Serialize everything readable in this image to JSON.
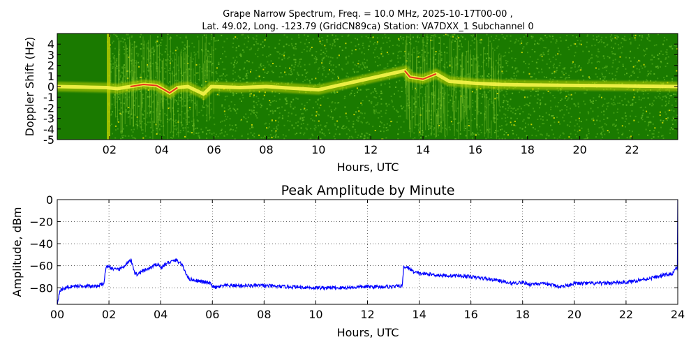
{
  "chart_data": [
    {
      "type": "heatmap",
      "title_line1": "Grape Narrow Spectrum, Freq. = 10.0 MHz, 2025-10-17T00-00 ,",
      "title_line2": "Lat.  49.02, Long. -123.79 (GridCN89ca) Station: VA7DXX_1 Subchannel 0",
      "xlabel": "Hours, UTC",
      "ylabel": "Doppler Shift (Hz)",
      "xlim": [
        0,
        23.75
      ],
      "ylim": [
        -5,
        5
      ],
      "x_ticks": [
        2,
        4,
        6,
        8,
        10,
        12,
        14,
        16,
        18,
        20,
        22
      ],
      "x_tick_labels": [
        "02",
        "04",
        "06",
        "08",
        "10",
        "12",
        "14",
        "16",
        "18",
        "20",
        "22"
      ],
      "y_ticks": [
        -5,
        -4,
        -3,
        -2,
        -1,
        0,
        1,
        2,
        3,
        4
      ],
      "y_tick_labels": [
        "-5",
        "-4",
        "-3",
        "-2",
        "-1",
        "0",
        "1",
        "2",
        "3",
        "4"
      ],
      "colors": {
        "background": "#1a7a00",
        "noise": "#3f9a12",
        "mid": "#c8d400",
        "high": "#f7f54a",
        "peak": "#e8341c"
      },
      "carrier_trace": [
        {
          "x": 0.0,
          "y": 0.0
        },
        {
          "x": 1.0,
          "y": -0.05
        },
        {
          "x": 1.9,
          "y": -0.1
        },
        {
          "x": 2.3,
          "y": -0.2
        },
        {
          "x": 2.8,
          "y": 0.0
        },
        {
          "x": 3.3,
          "y": 0.2
        },
        {
          "x": 3.8,
          "y": 0.1
        },
        {
          "x": 4.1,
          "y": -0.3
        },
        {
          "x": 4.3,
          "y": -0.6
        },
        {
          "x": 4.6,
          "y": -0.1
        },
        {
          "x": 5.0,
          "y": 0.0
        },
        {
          "x": 5.6,
          "y": -0.7
        },
        {
          "x": 5.9,
          "y": 0.0
        },
        {
          "x": 7.0,
          "y": -0.1
        },
        {
          "x": 8.0,
          "y": 0.0
        },
        {
          "x": 8.6,
          "y": -0.1
        },
        {
          "x": 10.0,
          "y": -0.3
        },
        {
          "x": 13.3,
          "y": 1.5
        },
        {
          "x": 13.5,
          "y": 0.9
        },
        {
          "x": 14.0,
          "y": 0.7
        },
        {
          "x": 14.5,
          "y": 1.2
        },
        {
          "x": 15.0,
          "y": 0.5
        },
        {
          "x": 16.0,
          "y": 0.3
        },
        {
          "x": 17.0,
          "y": 0.2
        },
        {
          "x": 18.0,
          "y": 0.15
        },
        {
          "x": 20.0,
          "y": 0.1
        },
        {
          "x": 22.0,
          "y": 0.05
        },
        {
          "x": 23.75,
          "y": 0.0
        }
      ],
      "vertical_band_x": 1.95
    },
    {
      "type": "line",
      "title": "Peak Amplitude by Minute",
      "xlabel": "Hours, UTC",
      "ylabel": "Amplitude, dBm",
      "xlim": [
        0,
        24
      ],
      "ylim": [
        -95,
        0
      ],
      "grid": true,
      "x_ticks": [
        0,
        2,
        4,
        6,
        8,
        10,
        12,
        14,
        16,
        18,
        20,
        22,
        24
      ],
      "x_tick_labels": [
        "00",
        "02",
        "04",
        "06",
        "08",
        "10",
        "12",
        "14",
        "16",
        "18",
        "20",
        "22",
        "24"
      ],
      "y_ticks": [
        0,
        -20,
        -40,
        -60,
        -80
      ],
      "y_tick_labels": [
        "0",
        "−20",
        "−40",
        "−60",
        "−80"
      ],
      "line_color": "#0000ff",
      "x": [
        0,
        0.1,
        0.5,
        1.0,
        1.5,
        1.8,
        1.9,
        2.0,
        2.3,
        2.5,
        2.7,
        2.85,
        3.0,
        3.1,
        3.3,
        3.6,
        3.9,
        4.0,
        4.3,
        4.6,
        4.8,
        4.9,
        5.1,
        5.5,
        5.9,
        6.1,
        6.5,
        7.0,
        8.0,
        8.6,
        9.0,
        10.0,
        11.0,
        12.0,
        13.0,
        13.35,
        13.4,
        13.6,
        13.8,
        14.0,
        14.5,
        15.0,
        15.5,
        16.0,
        17.0,
        17.5,
        18.0,
        18.3,
        18.5,
        19.0,
        19.5,
        20.0,
        21.0,
        22.0,
        23.0,
        23.8,
        23.95,
        24.0
      ],
      "y": [
        -95,
        -82,
        -79,
        -78,
        -79,
        -76,
        -60,
        -61,
        -64,
        -62,
        -58,
        -55,
        -66,
        -68,
        -65,
        -62,
        -58,
        -62,
        -57,
        -55,
        -58,
        -63,
        -72,
        -74,
        -76,
        -80,
        -78,
        -78,
        -78,
        -79,
        -79,
        -80,
        -80,
        -79,
        -79,
        -78,
        -61,
        -62,
        -66,
        -67,
        -68,
        -69,
        -69,
        -70,
        -73,
        -76,
        -75,
        -77,
        -76,
        -77,
        -79,
        -76,
        -76,
        -75,
        -71,
        -67,
        -62,
        0
      ]
    }
  ]
}
